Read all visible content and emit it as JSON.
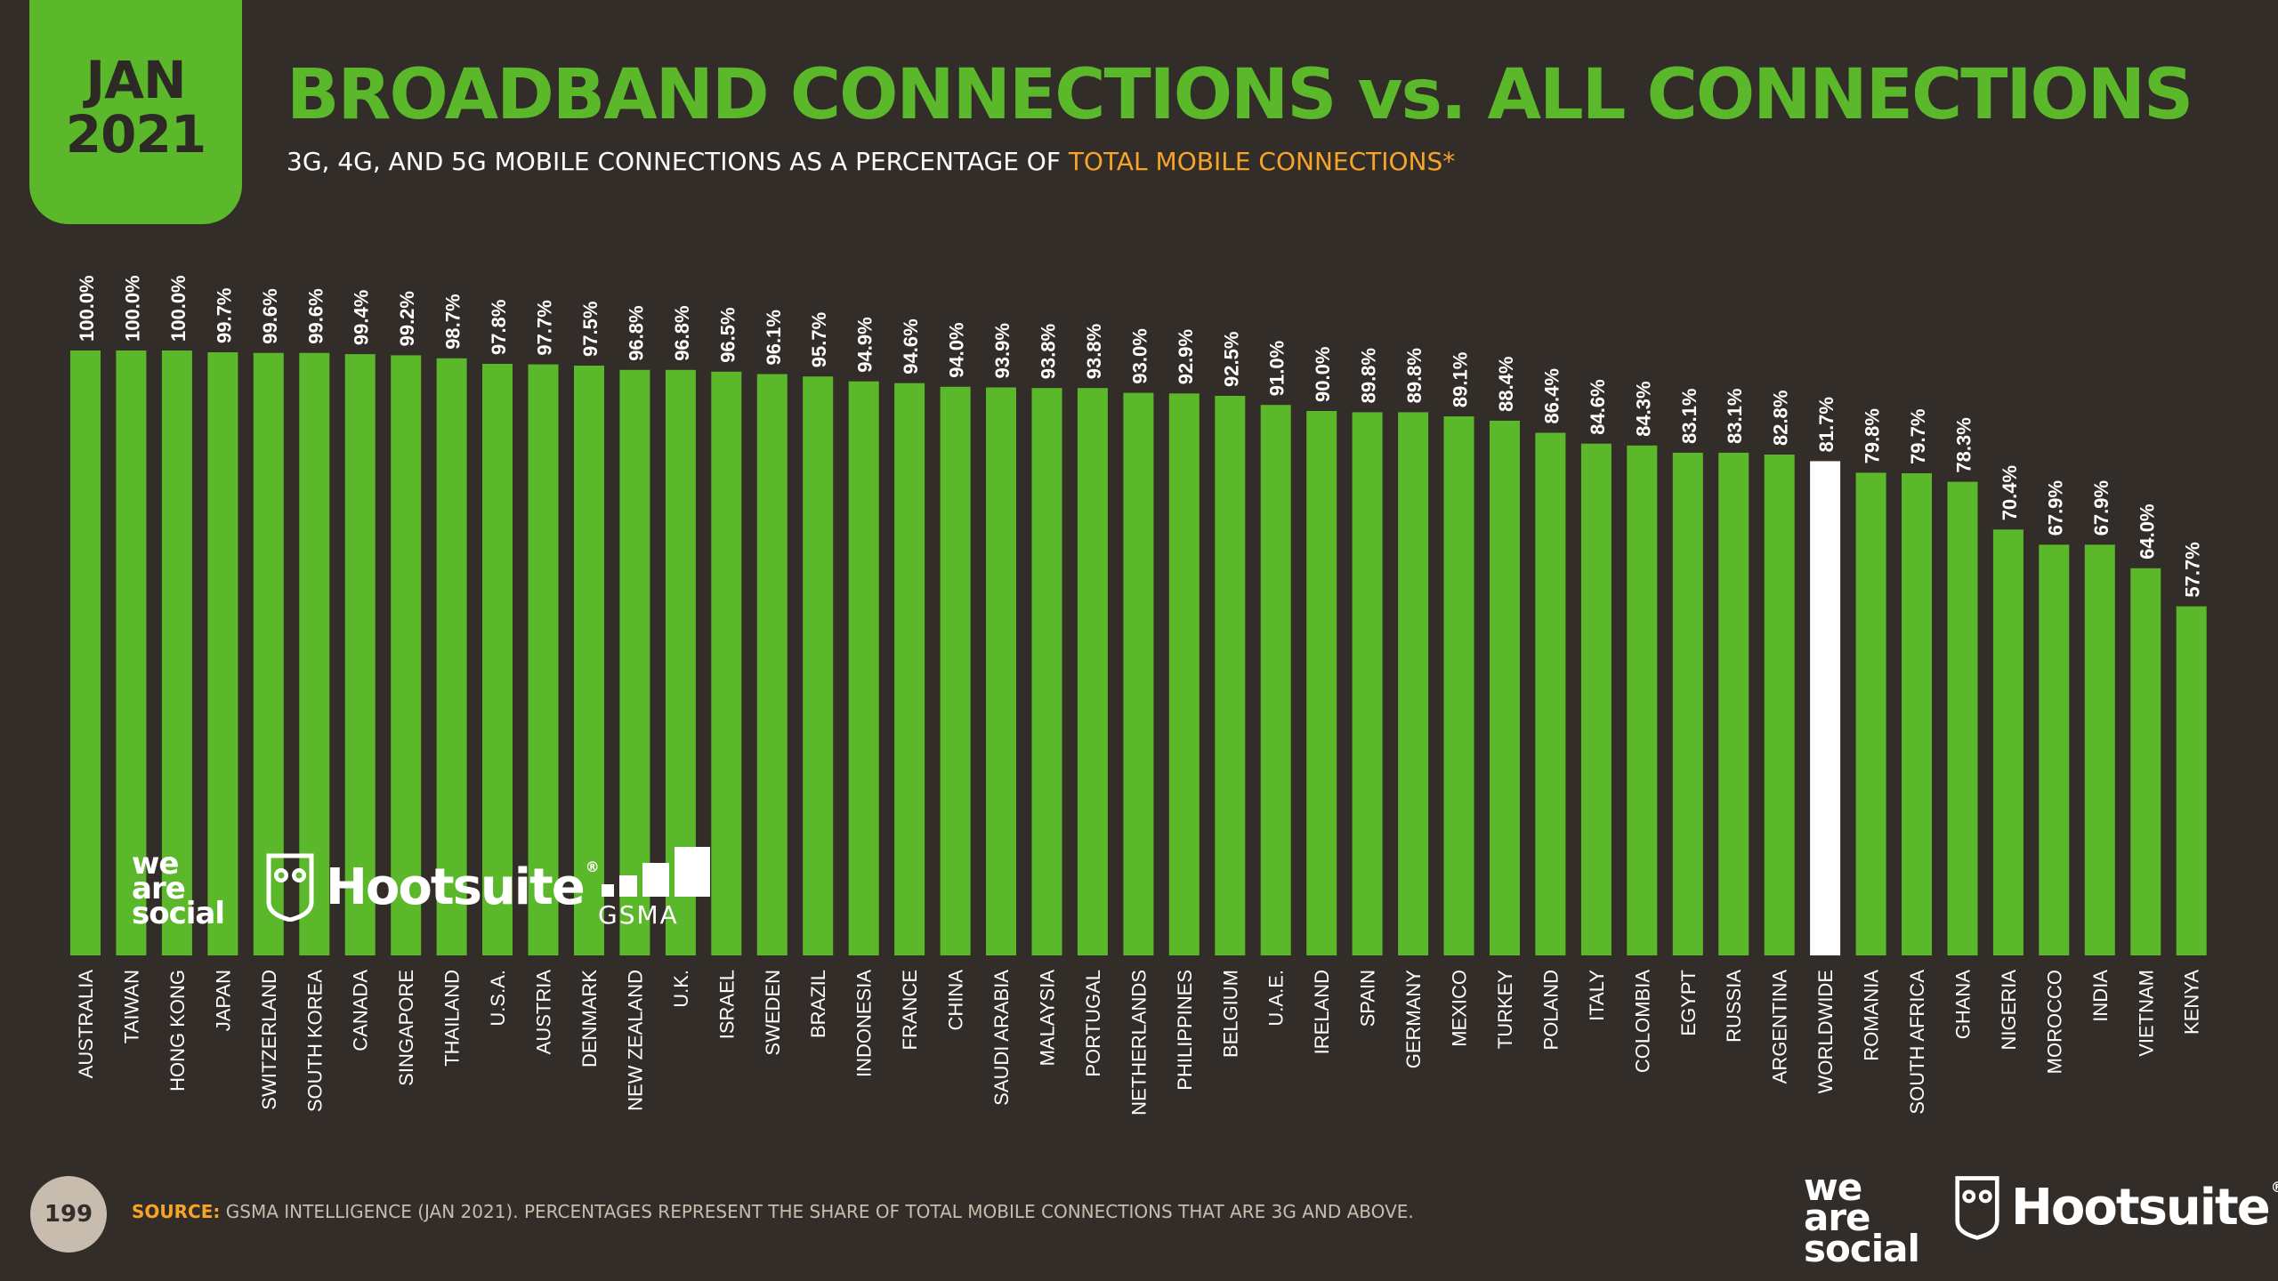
{
  "header": {
    "date_month": "JAN",
    "date_year": "2021",
    "title": "BROADBAND CONNECTIONS vs. ALL CONNECTIONS",
    "subtitle_prefix": "3G, 4G, AND 5G MOBILE CONNECTIONS AS A PERCENTAGE OF ",
    "subtitle_highlight": "TOTAL MOBILE CONNECTIONS*"
  },
  "colors": {
    "accent_green": "#5cb82b",
    "highlight_bar": "#ffffff",
    "background": "#332d29",
    "orange": "#f7a427",
    "muted_text": "#c7bcae"
  },
  "chart_data": {
    "type": "bar",
    "orientation": "vertical",
    "categories": [
      "AUSTRALIA",
      "TAIWAN",
      "HONG KONG",
      "JAPAN",
      "SWITZERLAND",
      "SOUTH KOREA",
      "CANADA",
      "SINGAPORE",
      "THAILAND",
      "U.S.A.",
      "AUSTRIA",
      "DENMARK",
      "NEW ZEALAND",
      "U.K.",
      "ISRAEL",
      "SWEDEN",
      "BRAZIL",
      "INDONESIA",
      "FRANCE",
      "CHINA",
      "SAUDI ARABIA",
      "MALAYSIA",
      "PORTUGAL",
      "NETHERLANDS",
      "PHILIPPINES",
      "BELGIUM",
      "U.A.E.",
      "IRELAND",
      "SPAIN",
      "GERMANY",
      "MEXICO",
      "TURKEY",
      "POLAND",
      "ITALY",
      "COLOMBIA",
      "EGYPT",
      "RUSSIA",
      "ARGENTINA",
      "WORLDWIDE",
      "ROMANIA",
      "SOUTH AFRICA",
      "GHANA",
      "NIGERIA",
      "MOROCCO",
      "INDIA",
      "VIETNAM",
      "KENYA"
    ],
    "values": [
      100.0,
      100.0,
      100.0,
      99.7,
      99.6,
      99.6,
      99.4,
      99.2,
      98.7,
      97.8,
      97.7,
      97.5,
      96.8,
      96.8,
      96.5,
      96.1,
      95.7,
      94.9,
      94.6,
      94.0,
      93.9,
      93.8,
      93.8,
      93.0,
      92.9,
      92.5,
      91.0,
      90.0,
      89.8,
      89.8,
      89.1,
      88.4,
      86.4,
      84.6,
      84.3,
      83.1,
      83.1,
      82.8,
      81.7,
      79.8,
      79.7,
      78.3,
      70.4,
      67.9,
      67.9,
      64.0,
      57.7
    ],
    "value_labels": [
      "100.0%",
      "100.0%",
      "100.0%",
      "99.7%",
      "99.6%",
      "99.6%",
      "99.4%",
      "99.2%",
      "98.7%",
      "97.8%",
      "97.7%",
      "97.5%",
      "96.8%",
      "96.8%",
      "96.5%",
      "96.1%",
      "95.7%",
      "94.9%",
      "94.6%",
      "94.0%",
      "93.9%",
      "93.8%",
      "93.8%",
      "93.0%",
      "92.9%",
      "92.5%",
      "91.0%",
      "90.0%",
      "89.8%",
      "89.8%",
      "89.1%",
      "88.4%",
      "86.4%",
      "84.6%",
      "84.3%",
      "83.1%",
      "83.1%",
      "82.8%",
      "81.7%",
      "79.8%",
      "79.7%",
      "78.3%",
      "70.4%",
      "67.9%",
      "67.9%",
      "64.0%",
      "57.7%"
    ],
    "highlight_category": "WORLDWIDE",
    "ylim": [
      0,
      100
    ],
    "grid": false,
    "legend": "none"
  },
  "logos": {
    "we_are_social": [
      "we",
      "are",
      "social"
    ],
    "hootsuite": "Hootsuite",
    "reg_mark": "®",
    "gsma": "GSMA"
  },
  "footer": {
    "page_number": "199",
    "source_label": "SOURCE:",
    "source_text": " GSMA INTELLIGENCE (JAN 2021). PERCENTAGES REPRESENT THE SHARE OF TOTAL MOBILE CONNECTIONS THAT ARE 3G AND ABOVE."
  }
}
